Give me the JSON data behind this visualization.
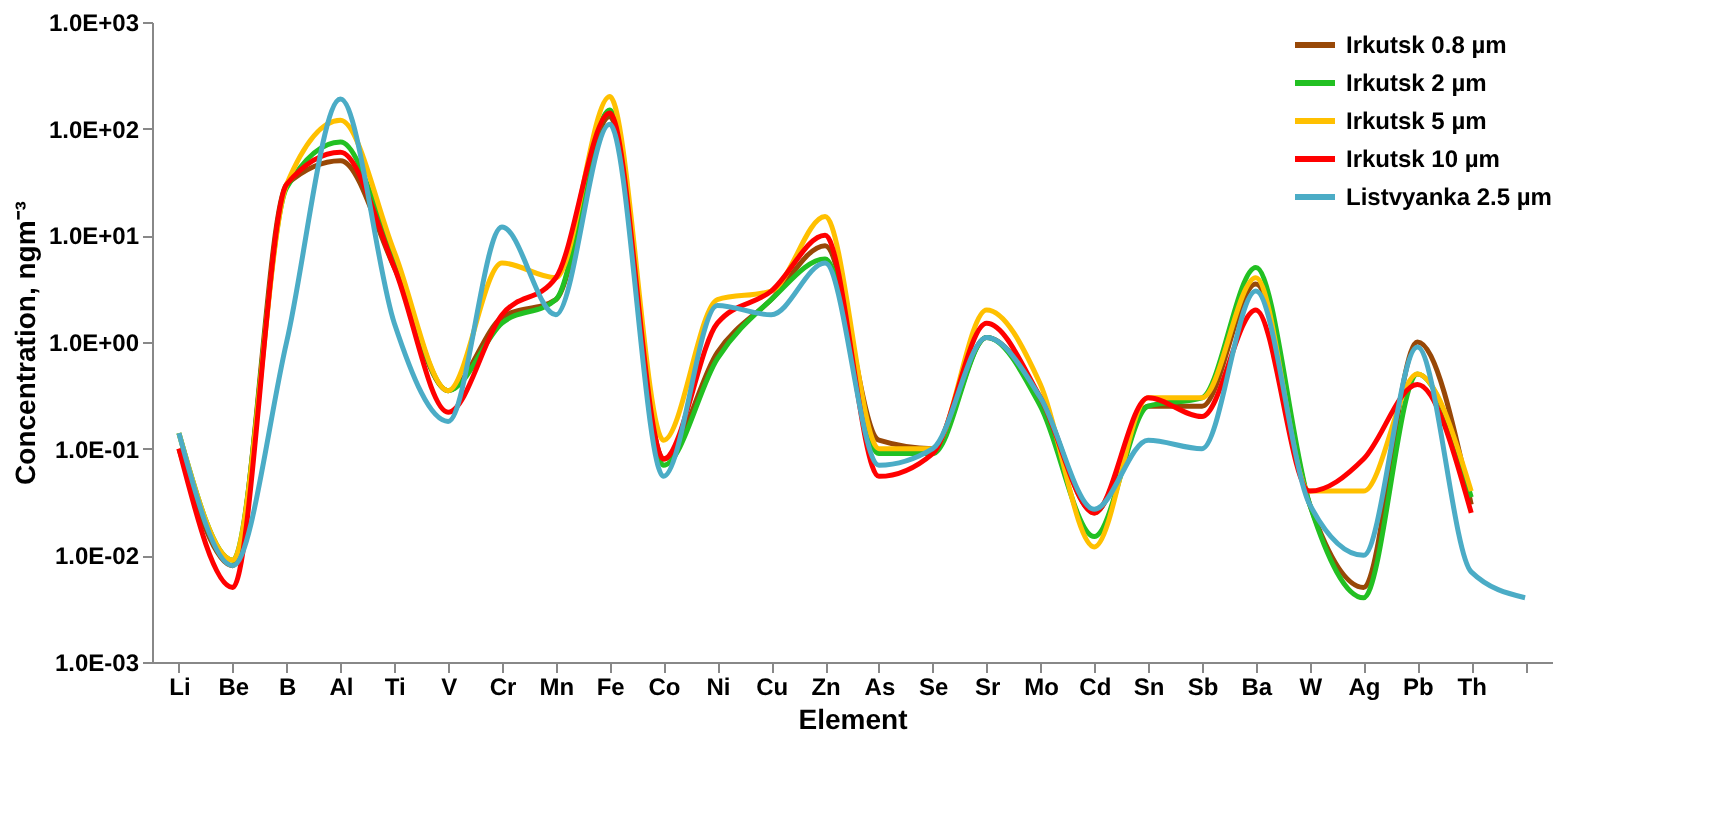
{
  "chart_data": {
    "type": "line",
    "xlabel": "Element",
    "ylabel": "Concentration, ngm⁻³",
    "categories": [
      "Li",
      "Be",
      "B",
      "Al",
      "Ti",
      "V",
      "Cr",
      "Mn",
      "Fe",
      "Co",
      "Ni",
      "Cu",
      "Zn",
      "As",
      "Se",
      "Sr",
      "Mo",
      "Cd",
      "Sn",
      "Sb",
      "Ba",
      "W",
      "Ag",
      "Pb",
      "Th",
      null
    ],
    "series": [
      {
        "name": "Irkutsk 0.8 µm",
        "color": "#984807",
        "values": [
          0.1,
          0.008,
          30,
          50,
          5,
          0.35,
          1.7,
          2.5,
          130,
          0.08,
          0.8,
          2.5,
          8,
          0.12,
          0.1,
          1.1,
          0.3,
          0.025,
          0.25,
          0.25,
          3.5,
          0.03,
          0.005,
          1.0,
          0.03,
          null
        ]
      },
      {
        "name": "Irkutsk 2 µm",
        "color": "#22c022",
        "values": [
          0.14,
          0.009,
          28,
          75,
          6,
          0.35,
          1.5,
          2.5,
          150,
          0.07,
          0.7,
          2.5,
          6,
          0.09,
          0.09,
          1.1,
          0.25,
          0.015,
          0.25,
          0.3,
          5,
          0.03,
          0.004,
          0.5,
          0.035,
          null
        ]
      },
      {
        "name": "Irkutsk 5 µm",
        "color": "#ffc000",
        "values": [
          0.14,
          0.009,
          30,
          120,
          7,
          0.35,
          5.5,
          4,
          200,
          0.12,
          2.5,
          3,
          15,
          0.1,
          0.1,
          2,
          0.4,
          0.012,
          0.3,
          0.3,
          4,
          0.04,
          0.04,
          0.5,
          0.04,
          null
        ]
      },
      {
        "name": "Irkutsk 10 µm",
        "color": "#ff0000",
        "values": [
          0.1,
          0.005,
          30,
          60,
          5,
          0.22,
          1.8,
          4,
          140,
          0.08,
          1.5,
          3,
          10,
          0.055,
          0.09,
          1.5,
          0.3,
          0.025,
          0.3,
          0.2,
          2,
          0.04,
          0.08,
          0.4,
          0.025,
          null
        ]
      },
      {
        "name": "Listvyanka 2.5 µm",
        "color": "#4bacc6",
        "values": [
          0.14,
          0.008,
          1.0,
          190,
          1.5,
          0.18,
          12,
          1.8,
          110,
          0.055,
          2.2,
          1.8,
          5.5,
          0.07,
          0.1,
          1.1,
          0.3,
          0.027,
          0.12,
          0.1,
          3,
          0.03,
          0.01,
          0.9,
          0.007,
          0.004
        ]
      }
    ],
    "log": true,
    "ylim": [
      0.001,
      1000
    ],
    "yticks": [
      {
        "value": 0.001,
        "label": "1.0E-03"
      },
      {
        "value": 0.01,
        "label": "1.0E-02"
      },
      {
        "value": 0.1,
        "label": "1.0E-01"
      },
      {
        "value": 1,
        "label": "1.0E+00"
      },
      {
        "value": 10,
        "label": "1.0E+01"
      },
      {
        "value": 100,
        "label": "1.0E+02"
      },
      {
        "value": 1000,
        "label": "1.0E+03"
      }
    ],
    "grid": false,
    "legend": "top right",
    "marker": "none",
    "line_style": "solid"
  }
}
